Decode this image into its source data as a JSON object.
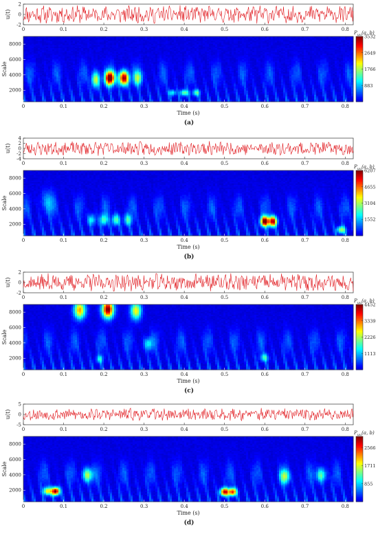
{
  "chart_data": [
    {
      "panel": "(a)",
      "type": "heatmap",
      "signal": {
        "ylabel": "u(t)",
        "ylim": [
          -2,
          2
        ],
        "yticks": [
          -2,
          0,
          2
        ],
        "amplitude": 1.4,
        "seed": 11
      },
      "scalogram": {
        "ylabel": "Scale",
        "xlabel": "Time (s)",
        "colorbar_label": "P",
        "colorbar_subscript": "uu",
        "colorbar_args": "(a, b)",
        "colorbar_ticks": [
          883,
          1766,
          2649,
          3532
        ],
        "zmax": 3532,
        "blobs": [
          {
            "t": 0.215,
            "s": 3600,
            "amp": 3532,
            "wt": 0.012,
            "ws": 900
          },
          {
            "t": 0.25,
            "s": 3600,
            "amp": 3450,
            "wt": 0.012,
            "ws": 900
          },
          {
            "t": 0.18,
            "s": 3400,
            "amp": 1800,
            "wt": 0.01,
            "ws": 1000
          },
          {
            "t": 0.285,
            "s": 3600,
            "amp": 1500,
            "wt": 0.01,
            "ws": 900
          },
          {
            "t": 0.4,
            "s": 1700,
            "amp": 1500,
            "wt": 0.01,
            "ws": 400
          },
          {
            "t": 0.43,
            "s": 1700,
            "amp": 1300,
            "wt": 0.009,
            "ws": 400
          },
          {
            "t": 0.37,
            "s": 1700,
            "amp": 1100,
            "wt": 0.009,
            "ws": 400
          }
        ]
      },
      "xlim": [
        0,
        0.82
      ],
      "xticks": [
        0,
        0.1,
        0.2,
        0.3,
        0.4,
        0.5,
        0.6,
        0.7,
        0.8
      ],
      "ylim": [
        500,
        9000
      ],
      "yticks": [
        2000,
        4000,
        6000,
        8000
      ]
    },
    {
      "panel": "(b)",
      "type": "heatmap",
      "signal": {
        "ylabel": "u(t)",
        "ylim": [
          -4,
          4
        ],
        "yticks": [
          -4,
          -2,
          0,
          2,
          4
        ],
        "amplitude": 2.2,
        "seed": 23
      },
      "scalogram": {
        "ylabel": "Scale",
        "xlabel": "Time (s)",
        "colorbar_label": "P",
        "colorbar_subscript": "uu",
        "colorbar_args": "(a, b)",
        "colorbar_ticks": [
          1552,
          3104,
          4655,
          6207
        ],
        "zmax": 6207,
        "blobs": [
          {
            "t": 0.6,
            "s": 2400,
            "amp": 6207,
            "wt": 0.01,
            "ws": 650
          },
          {
            "t": 0.62,
            "s": 2400,
            "amp": 5800,
            "wt": 0.01,
            "ws": 650
          },
          {
            "t": 0.79,
            "s": 1300,
            "amp": 3000,
            "wt": 0.01,
            "ws": 450
          },
          {
            "t": 0.2,
            "s": 2600,
            "amp": 2200,
            "wt": 0.01,
            "ws": 700
          },
          {
            "t": 0.23,
            "s": 2600,
            "amp": 2400,
            "wt": 0.01,
            "ws": 700
          },
          {
            "t": 0.26,
            "s": 2600,
            "amp": 2100,
            "wt": 0.01,
            "ws": 700
          },
          {
            "t": 0.17,
            "s": 2600,
            "amp": 1800,
            "wt": 0.01,
            "ws": 700
          },
          {
            "t": 0.06,
            "s": 5000,
            "amp": 1200,
            "wt": 0.015,
            "ws": 1400
          }
        ]
      },
      "xlim": [
        0,
        0.82
      ],
      "xticks": [
        0,
        0.1,
        0.2,
        0.3,
        0.4,
        0.5,
        0.6,
        0.7,
        0.8
      ],
      "ylim": [
        500,
        9000
      ],
      "yticks": [
        2000,
        4000,
        6000,
        8000
      ]
    },
    {
      "panel": "(c)",
      "type": "heatmap",
      "signal": {
        "ylabel": "u(t)",
        "ylim": [
          -2,
          2
        ],
        "yticks": [
          -2,
          0,
          2
        ],
        "amplitude": 1.4,
        "seed": 37
      },
      "scalogram": {
        "ylabel": "Scale",
        "xlabel": "Time (s)",
        "colorbar_label": "P",
        "colorbar_subscript": "uu",
        "colorbar_args": "(a, b)",
        "colorbar_ticks": [
          1113,
          2226,
          3339,
          4452
        ],
        "zmax": 4452,
        "blobs": [
          {
            "t": 0.21,
            "s": 8400,
            "amp": 4452,
            "wt": 0.014,
            "ws": 1100
          },
          {
            "t": 0.14,
            "s": 8300,
            "amp": 3000,
            "wt": 0.014,
            "ws": 1100
          },
          {
            "t": 0.28,
            "s": 8200,
            "amp": 2600,
            "wt": 0.013,
            "ws": 1100
          },
          {
            "t": 0.31,
            "s": 3900,
            "amp": 1300,
            "wt": 0.01,
            "ws": 800
          },
          {
            "t": 0.19,
            "s": 1900,
            "amp": 1200,
            "wt": 0.009,
            "ws": 500
          },
          {
            "t": 0.6,
            "s": 2100,
            "amp": 1400,
            "wt": 0.01,
            "ws": 500
          }
        ]
      },
      "xlim": [
        0,
        0.82
      ],
      "xticks": [
        0,
        0.1,
        0.2,
        0.3,
        0.4,
        0.5,
        0.6,
        0.7,
        0.8
      ],
      "ylim": [
        500,
        9000
      ],
      "yticks": [
        2000,
        4000,
        6000,
        8000
      ]
    },
    {
      "panel": "(d)",
      "type": "heatmap",
      "signal": {
        "ylabel": "u(t)",
        "ylim": [
          -5,
          5
        ],
        "yticks": [
          -5,
          0,
          5
        ],
        "amplitude": 2.4,
        "seed": 53
      },
      "scalogram": {
        "ylabel": "Scale",
        "xlabel": "Time (s)",
        "colorbar_label": "P",
        "colorbar_subscript": "uu",
        "colorbar_args": "(a, b)",
        "colorbar_ticks": [
          855,
          1711,
          2566
        ],
        "zmax": 3100,
        "blobs": [
          {
            "t": 0.08,
            "s": 1900,
            "amp": 3100,
            "wt": 0.01,
            "ws": 500
          },
          {
            "t": 0.5,
            "s": 1800,
            "amp": 2800,
            "wt": 0.01,
            "ws": 500
          },
          {
            "t": 0.52,
            "s": 1800,
            "amp": 2500,
            "wt": 0.01,
            "ws": 500
          },
          {
            "t": 0.06,
            "s": 1900,
            "amp": 1800,
            "wt": 0.01,
            "ws": 500
          },
          {
            "t": 0.16,
            "s": 4000,
            "amp": 1500,
            "wt": 0.012,
            "ws": 900
          },
          {
            "t": 0.65,
            "s": 3800,
            "amp": 1300,
            "wt": 0.012,
            "ws": 900
          },
          {
            "t": 0.74,
            "s": 4000,
            "amp": 1200,
            "wt": 0.012,
            "ws": 900
          }
        ]
      },
      "xlim": [
        0,
        0.82
      ],
      "xticks": [
        0,
        0.1,
        0.2,
        0.3,
        0.4,
        0.5,
        0.6,
        0.7,
        0.8
      ],
      "ylim": [
        500,
        9000
      ],
      "yticks": [
        2000,
        4000,
        6000,
        8000
      ]
    }
  ]
}
